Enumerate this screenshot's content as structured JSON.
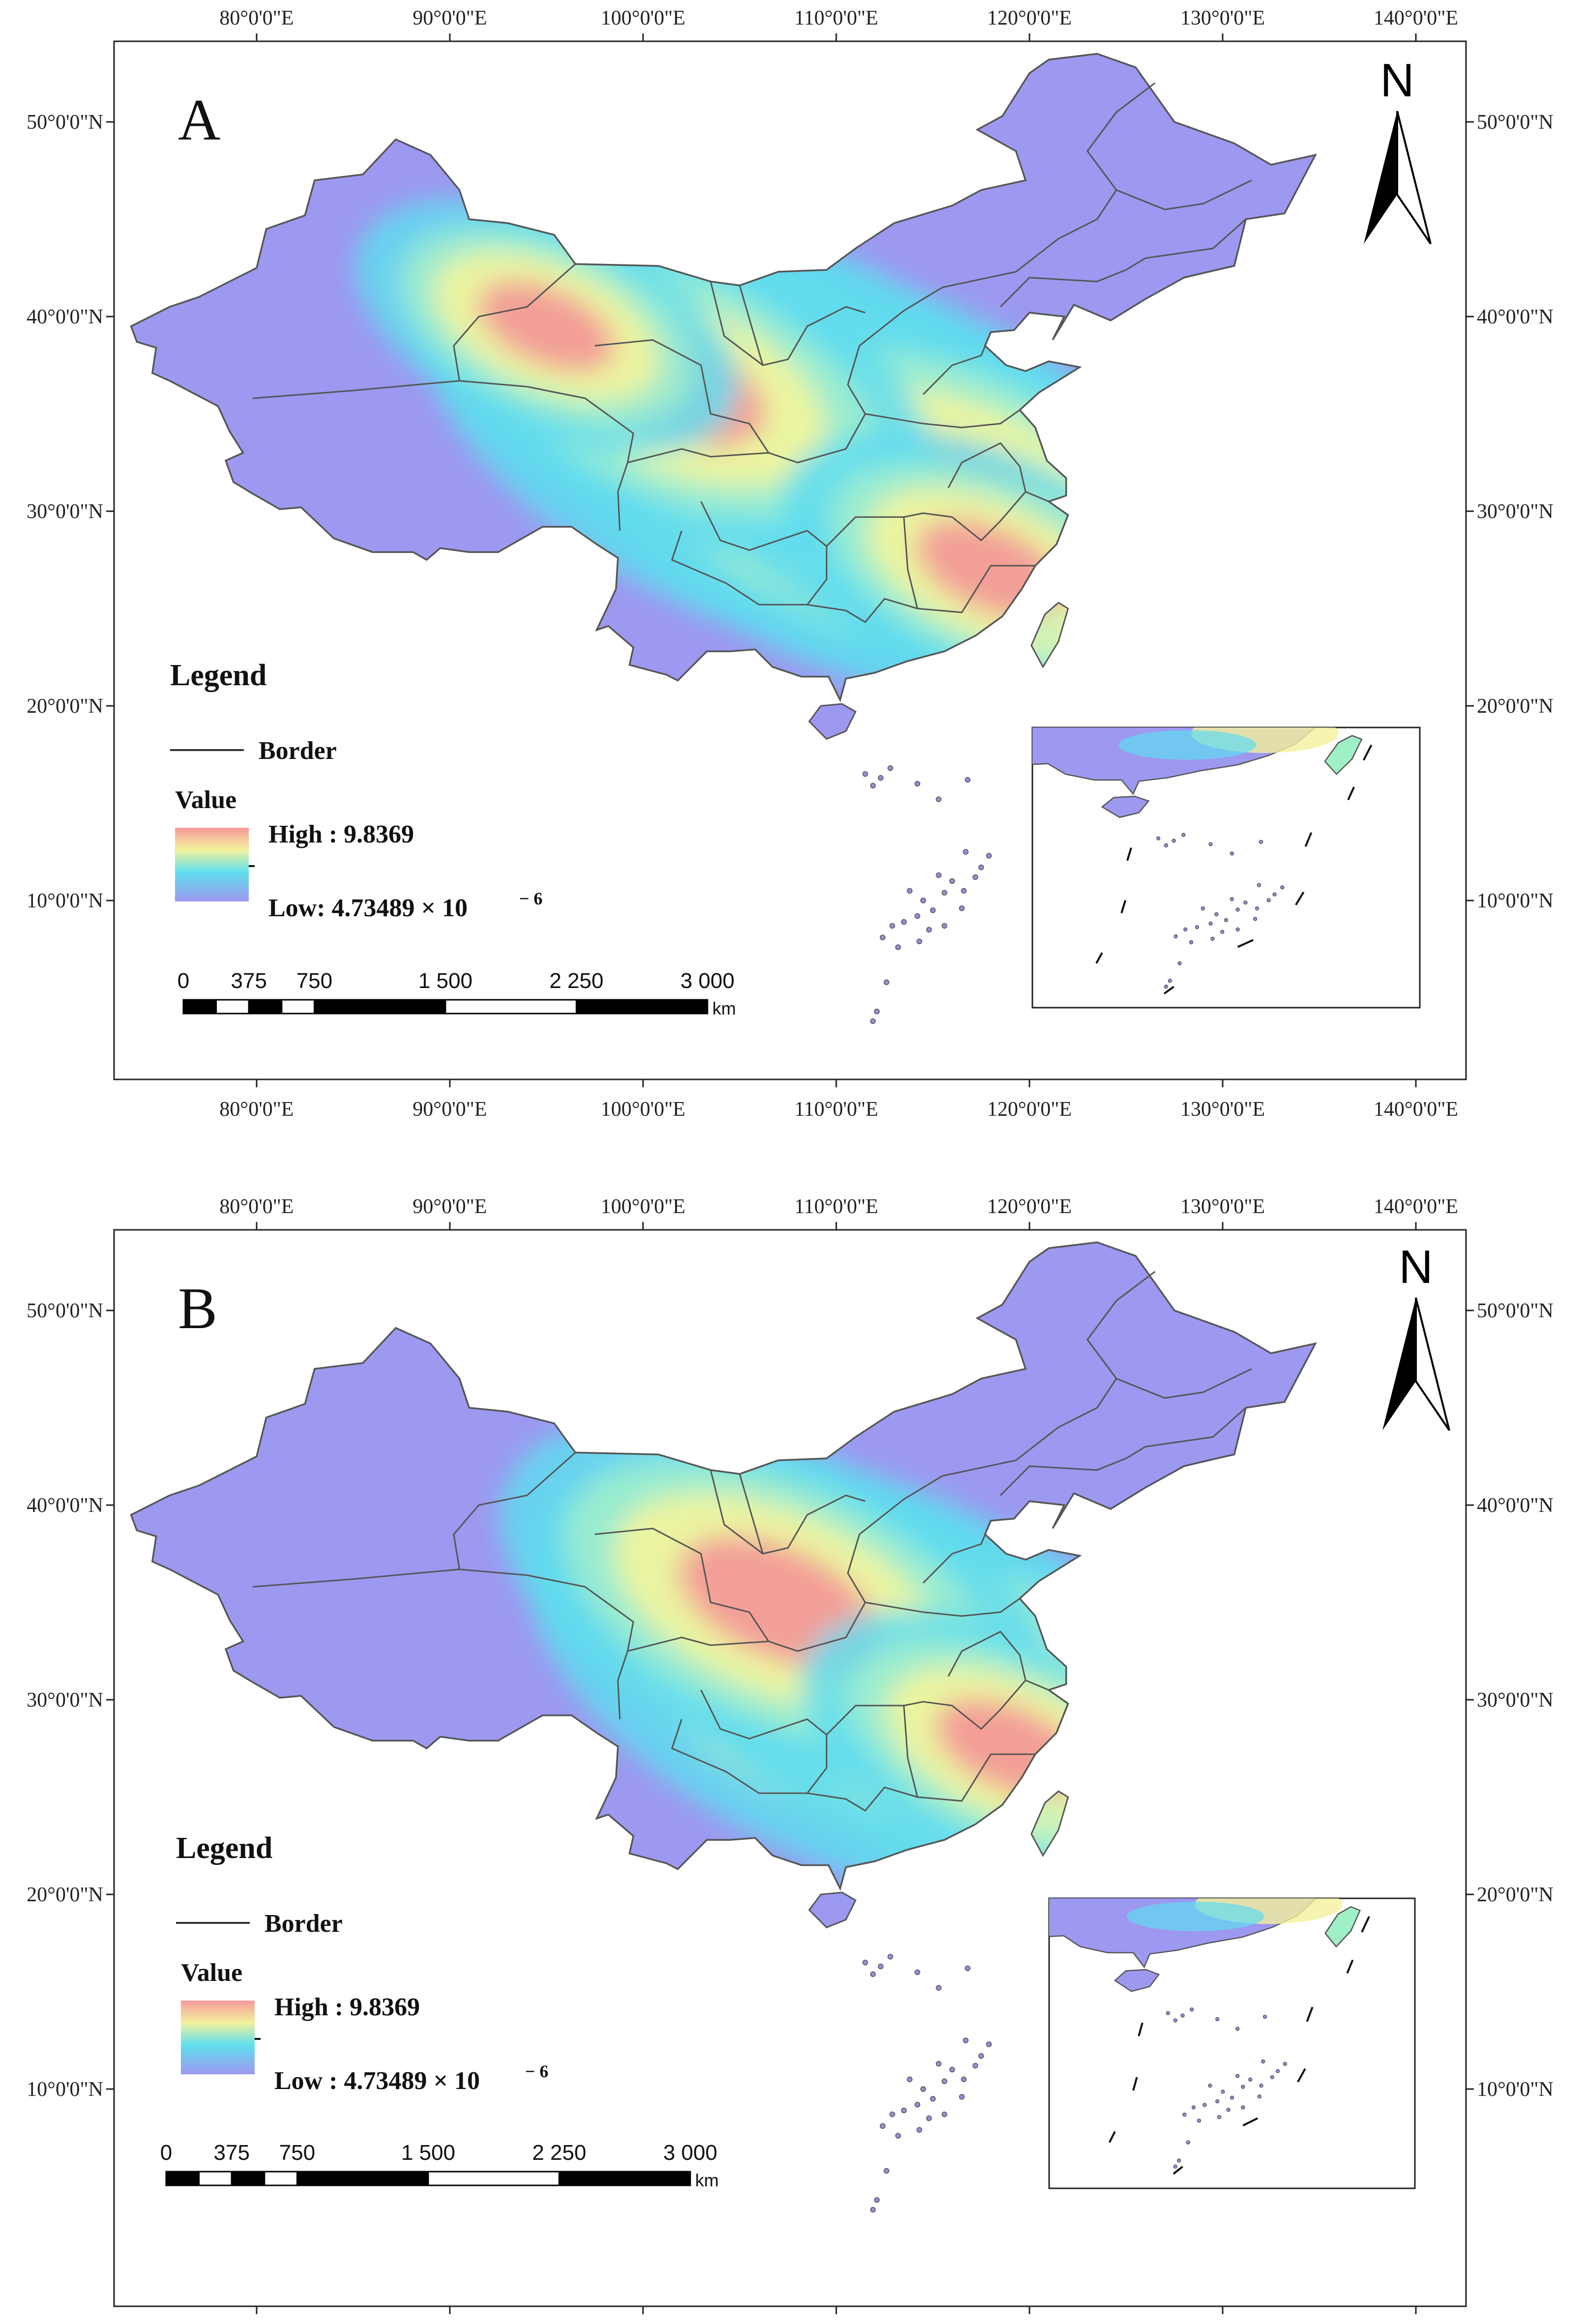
{
  "panels": [
    {
      "id": "A",
      "label": "A",
      "lon_ticks": [
        "80°0'0\"E",
        "90°0'0\"E",
        "100°0'0\"E",
        "110°0'0\"E",
        "120°0'0\"E",
        "130°0'0\"E",
        "140°0'0\"E"
      ],
      "lat_ticks": [
        "50°0'0\"N",
        "40°0'0\"N",
        "30°0'0\"N",
        "20°0'0\"N",
        "10°0'0\"N"
      ],
      "north": "N",
      "legend": {
        "title": "Legend",
        "border_label": "Border",
        "value_title": "Value",
        "high_label": "High : 9.8369",
        "low_label": "Low: 4.73489 × 10",
        "low_exponent": "− 6"
      },
      "scale": {
        "ticks": [
          "0",
          "375",
          "750",
          "1 500",
          "2 250",
          "3 000"
        ],
        "unit": "km"
      },
      "hotspots": [
        {
          "lon": 106.5,
          "lat": 34.0,
          "value": 1.0
        },
        {
          "lon": 112.0,
          "lat": 31.5,
          "value": 1.0
        },
        {
          "lon": 116.5,
          "lat": 30.5,
          "value": 0.85
        },
        {
          "lon": 101.5,
          "lat": 36.5,
          "value": 0.75
        },
        {
          "lon": 95.0,
          "lat": 39.5,
          "value": 0.55
        },
        {
          "lon": 118.0,
          "lat": 27.0,
          "value": 0.6
        }
      ]
    },
    {
      "id": "B",
      "label": "B",
      "lon_ticks": [
        "80°0'0\"E",
        "90°0'0\"E",
        "100°0'0\"E",
        "110°0'0\"E",
        "120°0'0\"E",
        "130°0'0\"E",
        "140°0'0\"E"
      ],
      "lat_ticks": [
        "50°0'0\"N",
        "40°0'0\"N",
        "30°0'0\"N",
        "20°0'0\"N",
        "10°0'0\"N"
      ],
      "north": "N",
      "legend": {
        "title": "Legend",
        "border_label": "Border",
        "value_title": "Value",
        "high_label": "High : 9.8369",
        "low_label": "Low : 4.73489 × 10",
        "low_exponent": "− 6"
      },
      "scale": {
        "ticks": [
          "0",
          "375",
          "750",
          "1 500",
          "2 250",
          "3 000"
        ],
        "unit": "km"
      },
      "hotspots": [
        {
          "lon": 112.0,
          "lat": 31.0,
          "value": 1.0
        },
        {
          "lon": 116.5,
          "lat": 30.0,
          "value": 0.9
        },
        {
          "lon": 107.0,
          "lat": 35.0,
          "value": 0.8
        },
        {
          "lon": 119.0,
          "lat": 27.5,
          "value": 0.6
        }
      ]
    }
  ],
  "colors": {
    "low": "#9d98f0",
    "mid_low": "#5fdcef",
    "mid": "#f4f59a",
    "high": "#f39a97",
    "border": "#555555"
  }
}
